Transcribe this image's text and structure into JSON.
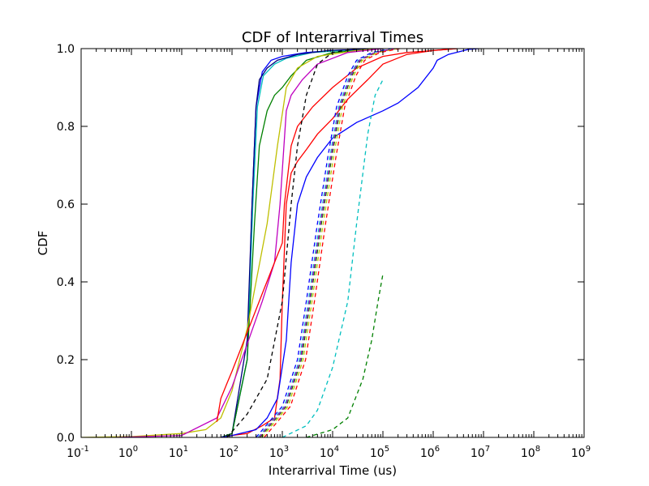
{
  "chart_data": {
    "type": "line",
    "title": "CDF of Interarrival Times",
    "xlabel": "Interarrival Time (us)",
    "ylabel": "CDF",
    "xscale": "log",
    "xlim": [
      0.1,
      1000000000
    ],
    "ylim": [
      0.0,
      1.0
    ],
    "x_ticks": [
      {
        "base": "10",
        "exp": "-1"
      },
      {
        "base": "10",
        "exp": "0"
      },
      {
        "base": "10",
        "exp": "1"
      },
      {
        "base": "10",
        "exp": "2"
      },
      {
        "base": "10",
        "exp": "3"
      },
      {
        "base": "10",
        "exp": "4"
      },
      {
        "base": "10",
        "exp": "5"
      },
      {
        "base": "10",
        "exp": "6"
      },
      {
        "base": "10",
        "exp": "7"
      },
      {
        "base": "10",
        "exp": "8"
      },
      {
        "base": "10",
        "exp": "9"
      }
    ],
    "y_ticks": [
      "0.0",
      "0.2",
      "0.4",
      "0.6",
      "0.8",
      "1.0"
    ],
    "grid": false,
    "legend": "none",
    "series": [
      {
        "color": "#0000ff",
        "style": "solid",
        "x": [
          60,
          100,
          200,
          250,
          300,
          400,
          600,
          1000,
          3000,
          10000,
          100000
        ],
        "y": [
          0.0,
          0.01,
          0.2,
          0.6,
          0.85,
          0.94,
          0.97,
          0.98,
          0.99,
          0.995,
          1.0
        ]
      },
      {
        "color": "#00bfbf",
        "style": "solid",
        "x": [
          60,
          100,
          200,
          260,
          320,
          420,
          700,
          1200,
          4000,
          15000,
          100000
        ],
        "y": [
          0.0,
          0.01,
          0.2,
          0.6,
          0.85,
          0.93,
          0.96,
          0.975,
          0.99,
          0.995,
          1.0
        ]
      },
      {
        "color": "#000080",
        "style": "solid",
        "x": [
          60,
          100,
          200,
          250,
          300,
          350,
          500,
          800,
          2000,
          8000,
          100000
        ],
        "y": [
          0.0,
          0.01,
          0.25,
          0.6,
          0.85,
          0.92,
          0.95,
          0.97,
          0.985,
          0.995,
          1.0
        ]
      },
      {
        "color": "#008000",
        "style": "solid",
        "x": [
          60,
          100,
          200,
          280,
          350,
          500,
          700,
          1000,
          1500,
          3000,
          10000,
          100000
        ],
        "y": [
          0.0,
          0.01,
          0.2,
          0.55,
          0.75,
          0.84,
          0.88,
          0.9,
          0.93,
          0.97,
          0.99,
          1.0
        ]
      },
      {
        "color": "#bfbf00",
        "style": "solid",
        "x": [
          0.1,
          1,
          10,
          30,
          60,
          100,
          200,
          500,
          800,
          1200,
          2000,
          5000,
          30000,
          100000
        ],
        "y": [
          0.0,
          0.002,
          0.01,
          0.02,
          0.05,
          0.12,
          0.28,
          0.55,
          0.75,
          0.9,
          0.95,
          0.98,
          0.995,
          1.0
        ]
      },
      {
        "color": "#bf00bf",
        "style": "solid",
        "x": [
          0.5,
          10,
          50,
          100,
          200,
          400,
          700,
          900,
          1200,
          1500,
          2500,
          5000,
          20000,
          100000
        ],
        "y": [
          0.0,
          0.005,
          0.05,
          0.13,
          0.24,
          0.35,
          0.45,
          0.6,
          0.84,
          0.88,
          0.92,
          0.96,
          0.99,
          1.0
        ]
      },
      {
        "color": "#ff0000",
        "style": "solid",
        "x": [
          50,
          60,
          80,
          100,
          200,
          400,
          700,
          1000,
          1100,
          1500,
          2000,
          4000,
          10000,
          30000,
          100000,
          300000,
          1000000,
          3000000
        ],
        "y": [
          0.04,
          0.1,
          0.14,
          0.17,
          0.27,
          0.37,
          0.45,
          0.5,
          0.6,
          0.75,
          0.8,
          0.85,
          0.9,
          0.95,
          0.98,
          0.99,
          0.995,
          1.0
        ]
      },
      {
        "color": "#ff0000",
        "style": "solid",
        "x": [
          60,
          100,
          200,
          400,
          700,
          900,
          1000,
          1200,
          1500,
          2000,
          3000,
          5000,
          10000,
          20000,
          50000,
          100000,
          300000,
          1000000,
          3000000
        ],
        "y": [
          0.0,
          0.005,
          0.01,
          0.03,
          0.05,
          0.15,
          0.35,
          0.6,
          0.68,
          0.71,
          0.74,
          0.78,
          0.82,
          0.87,
          0.92,
          0.96,
          0.985,
          0.995,
          1.0
        ]
      },
      {
        "color": "#0000ff",
        "style": "solid",
        "x": [
          60,
          100,
          300,
          500,
          800,
          1200,
          1500,
          2000,
          3000,
          5000,
          10000,
          30000,
          100000,
          200000,
          500000,
          1000000,
          1200000,
          2000000,
          5000000,
          8000000
        ],
        "y": [
          0.0,
          0.005,
          0.02,
          0.05,
          0.1,
          0.25,
          0.45,
          0.6,
          0.67,
          0.72,
          0.77,
          0.81,
          0.84,
          0.86,
          0.9,
          0.95,
          0.97,
          0.985,
          0.998,
          1.0
        ]
      },
      {
        "color": "#000000",
        "style": "dashed",
        "x": [
          80,
          200,
          500,
          1000,
          1500,
          2000,
          3000,
          5000,
          10000,
          30000
        ],
        "y": [
          0.0,
          0.06,
          0.15,
          0.35,
          0.6,
          0.75,
          0.88,
          0.96,
          0.99,
          1.0
        ]
      },
      {
        "color": "#0000ff",
        "style": "dashed",
        "x": [
          300,
          1000,
          2000,
          3000,
          5000,
          8000,
          12000,
          20000,
          30000,
          60000,
          150000
        ],
        "y": [
          0.0,
          0.08,
          0.2,
          0.35,
          0.55,
          0.72,
          0.85,
          0.93,
          0.97,
          0.99,
          1.0
        ]
      },
      {
        "color": "#00bfbf",
        "style": "dashed",
        "x": [
          300,
          1000,
          2000,
          3000,
          5000,
          8000,
          12000,
          20000,
          30000,
          60000,
          150000
        ],
        "y": [
          0.0,
          0.08,
          0.2,
          0.35,
          0.55,
          0.72,
          0.85,
          0.93,
          0.97,
          0.99,
          1.0
        ],
        "shift": 1.1
      },
      {
        "color": "#008000",
        "style": "dashed",
        "x": [
          300,
          1000,
          2000,
          3000,
          5000,
          8000,
          12000,
          20000,
          30000,
          60000,
          150000
        ],
        "y": [
          0.0,
          0.08,
          0.2,
          0.35,
          0.55,
          0.72,
          0.85,
          0.93,
          0.97,
          0.99,
          1.0
        ],
        "shift": 1.2
      },
      {
        "color": "#bfbf00",
        "style": "dashed",
        "x": [
          300,
          1000,
          2000,
          3000,
          5000,
          8000,
          12000,
          20000,
          30000,
          60000,
          150000
        ],
        "y": [
          0.0,
          0.08,
          0.2,
          0.35,
          0.55,
          0.72,
          0.85,
          0.93,
          0.97,
          0.99,
          1.0
        ],
        "shift": 1.3
      },
      {
        "color": "#bf00bf",
        "style": "dashed",
        "x": [
          300,
          1000,
          2000,
          3000,
          5000,
          8000,
          12000,
          20000,
          30000,
          60000,
          150000
        ],
        "y": [
          0.0,
          0.08,
          0.2,
          0.35,
          0.55,
          0.72,
          0.85,
          0.93,
          0.97,
          0.99,
          1.0
        ],
        "shift": 1.15
      },
      {
        "color": "#ff0000",
        "style": "dashed",
        "x": [
          300,
          1000,
          2000,
          3000,
          5000,
          8000,
          12000,
          20000,
          30000,
          60000,
          150000
        ],
        "y": [
          0.0,
          0.08,
          0.2,
          0.35,
          0.55,
          0.72,
          0.85,
          0.93,
          0.97,
          0.99,
          1.0
        ],
        "shift": 1.45
      },
      {
        "color": "#00bfbf",
        "style": "dashed",
        "x": [
          1000,
          3000,
          5000,
          10000,
          20000,
          30000,
          50000,
          70000,
          100000
        ],
        "y": [
          0.0,
          0.03,
          0.07,
          0.18,
          0.35,
          0.55,
          0.78,
          0.88,
          0.92
        ]
      },
      {
        "color": "#008000",
        "style": "dashed",
        "x": [
          3000,
          10000,
          20000,
          40000,
          60000,
          80000,
          100000
        ],
        "y": [
          0.0,
          0.02,
          0.05,
          0.15,
          0.25,
          0.35,
          0.42
        ]
      }
    ]
  }
}
